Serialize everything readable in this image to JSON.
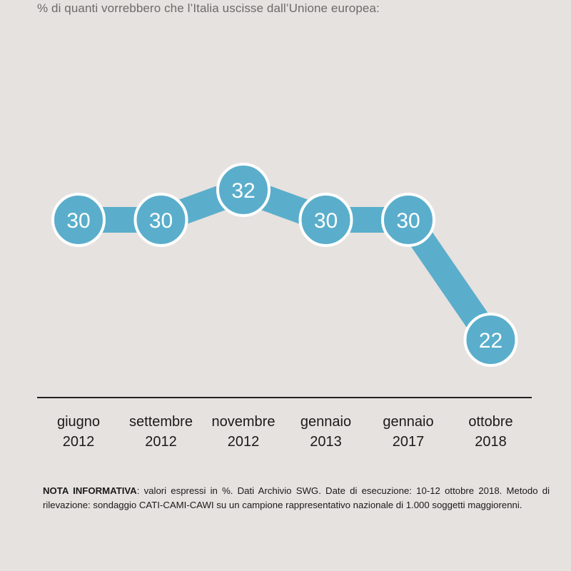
{
  "chart_data": {
    "type": "line",
    "subtitle": "% di quanti vorrebbero che l’Italia uscisse dall’Unione europea:",
    "categories": [
      [
        "giugno",
        "2012"
      ],
      [
        "settembre",
        "2012"
      ],
      [
        "novembre",
        "2012"
      ],
      [
        "gennaio",
        "2013"
      ],
      [
        "gennaio",
        "2017"
      ],
      [
        "ottobre",
        "2018"
      ]
    ],
    "values": [
      30,
      30,
      32,
      30,
      30,
      22
    ],
    "data_labels": [
      "30",
      "30",
      "32",
      "30",
      "30",
      "22"
    ],
    "unit": "%",
    "grid": false,
    "legend": "none"
  },
  "colors": {
    "background": "#e6e2df",
    "line": "#5aaecb",
    "marker": "#5aaecb",
    "marker_outline": "#ffffff",
    "axis": "#222222"
  },
  "note": {
    "label": "NOTA INFORMATIVA",
    "text": ": valori espressi in %. Dati Archivio SWG. Date di esecuzione: 10-12 ottobre 2018. Metodo di rilevazione: sondaggio CATI-CAMI-CAWI su un campione rappresentativo nazionale di 1.000 soggetti maggiorenni."
  }
}
